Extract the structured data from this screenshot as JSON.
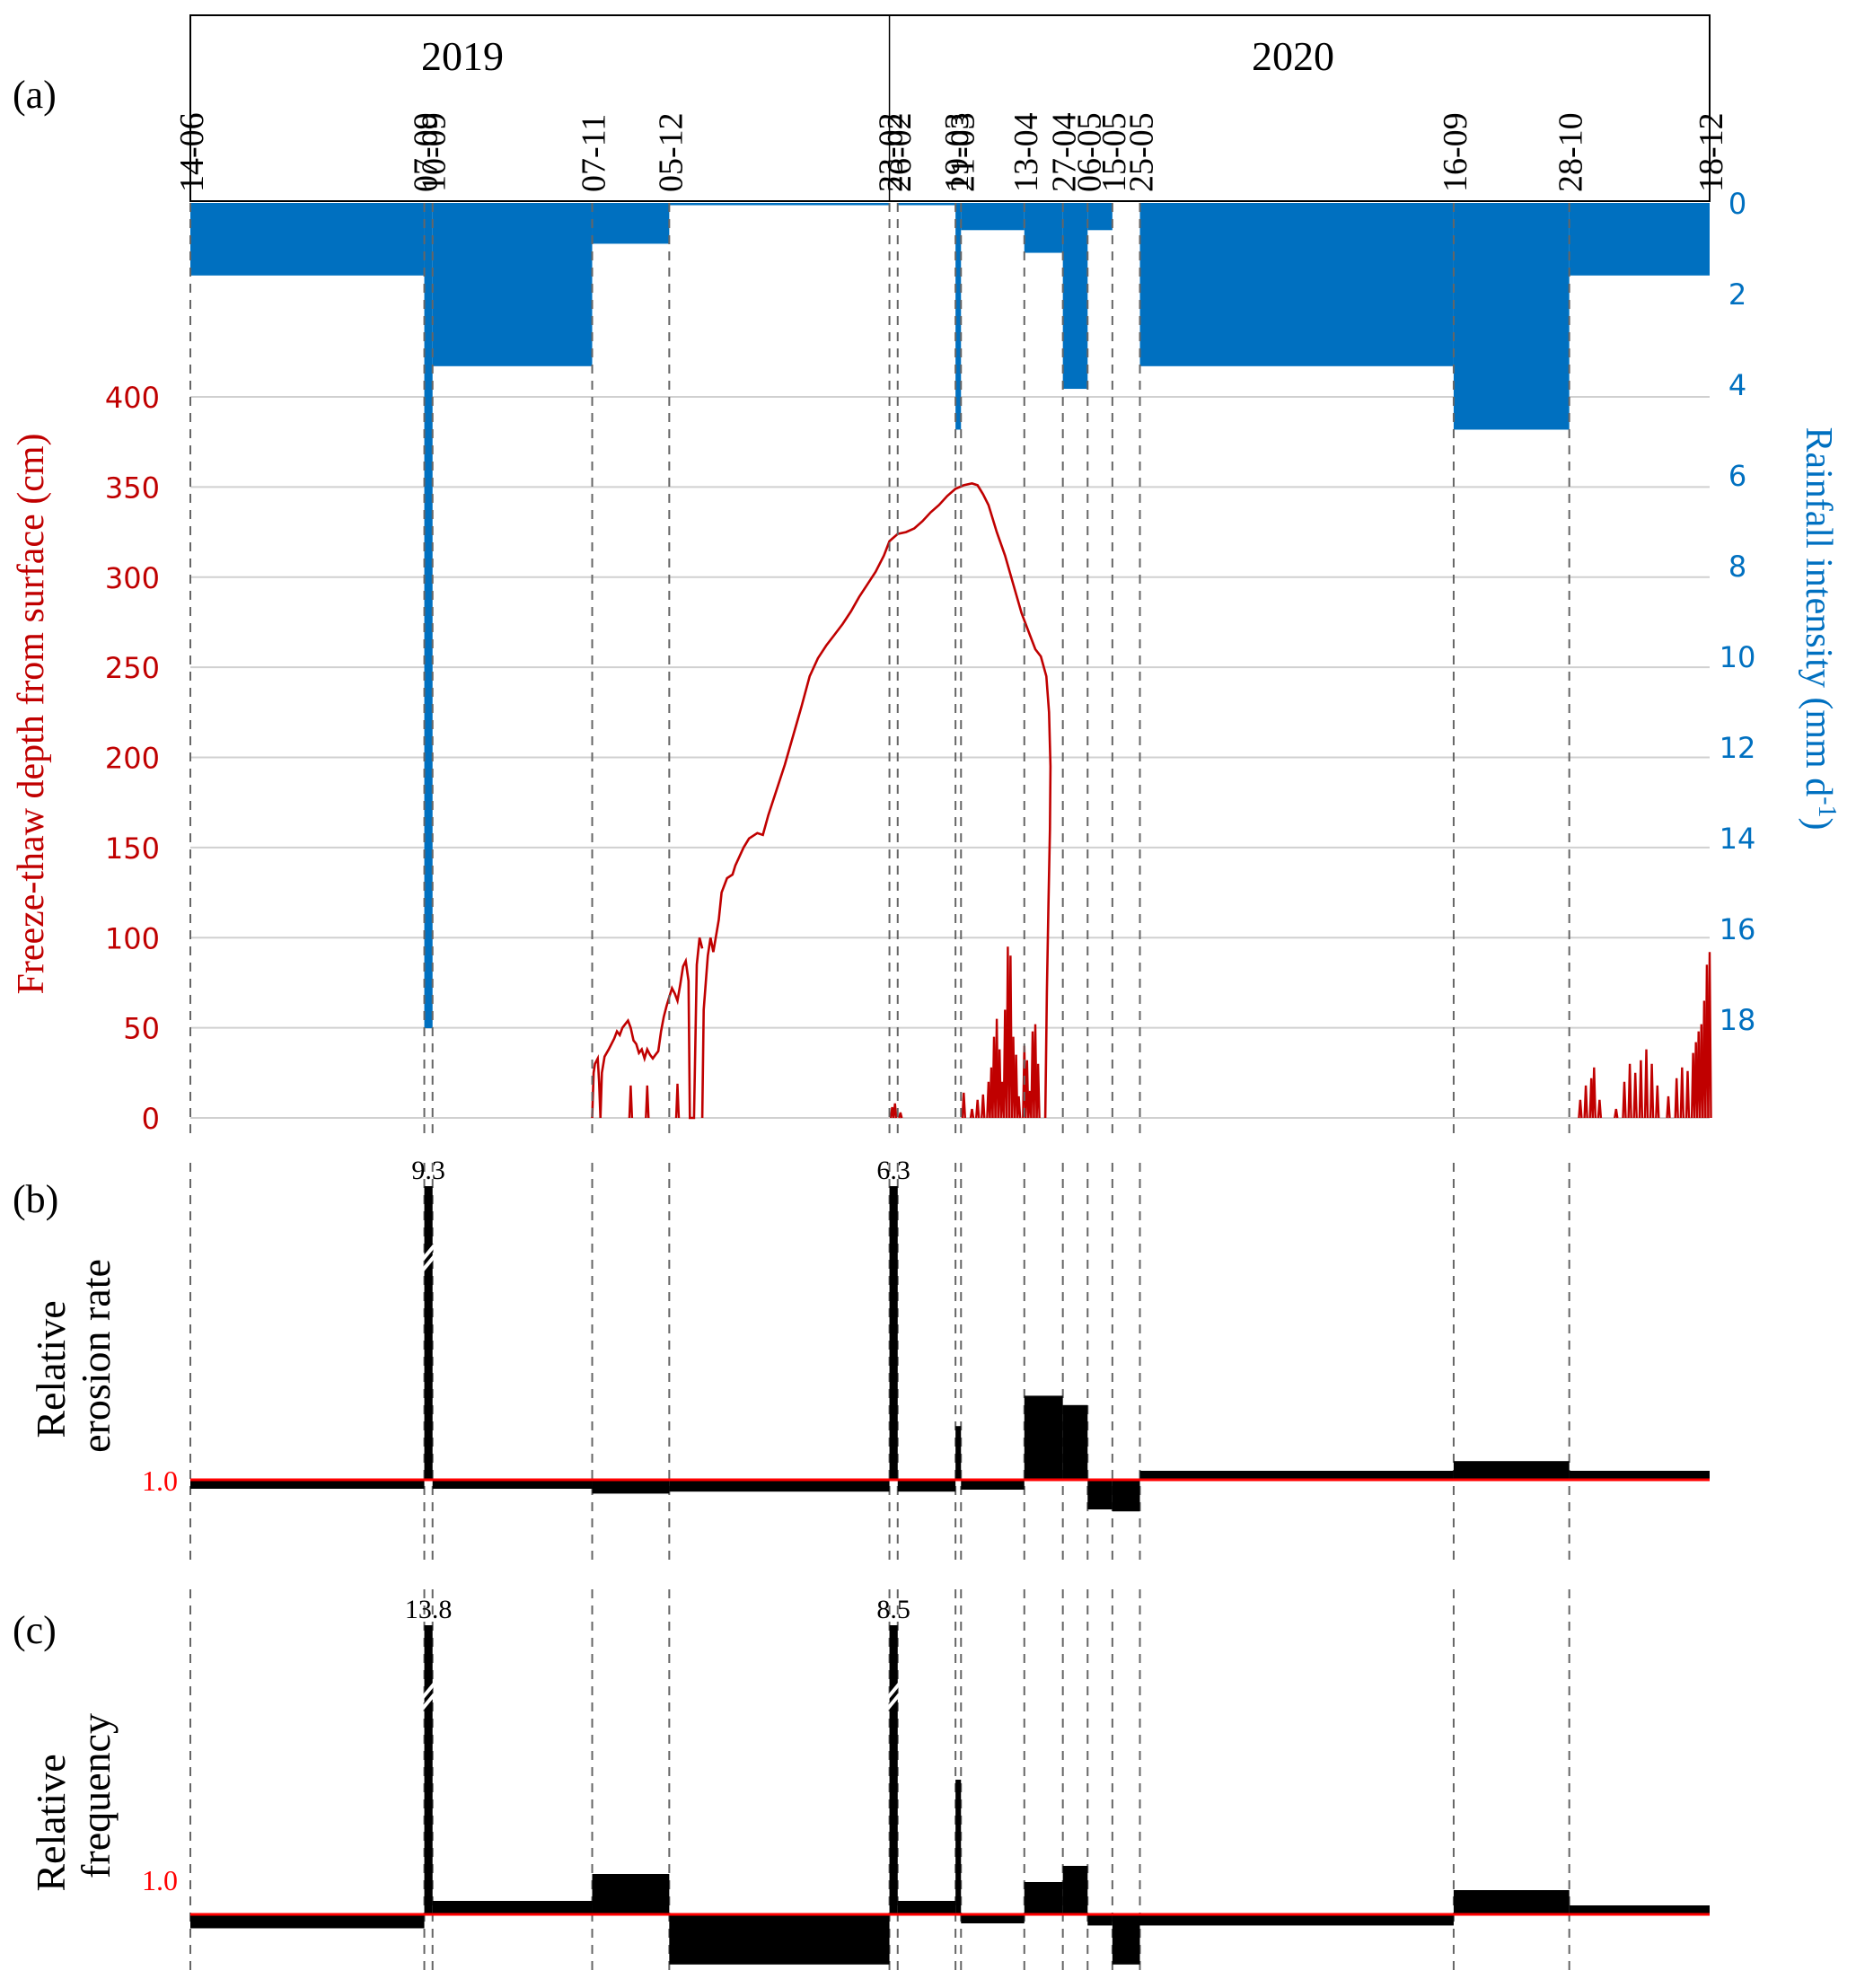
{
  "figure": {
    "panel_labels": [
      "(a)",
      "(b)",
      "(c)"
    ],
    "years": [
      {
        "label": "2019",
        "from": 0,
        "to": 5
      },
      {
        "label": "2020",
        "from": 5,
        "to": 19
      }
    ]
  },
  "chart_data": [
    {
      "id": "a",
      "type": "bar+line",
      "title": "",
      "x_boundaries": [
        "14-06",
        "07-09",
        "10-09",
        "07-11",
        "05-12",
        "23-02",
        "26-02",
        "19-03",
        "21-03",
        "13-04",
        "27-04",
        "06-05",
        "15-05",
        "25-05",
        "16-09",
        "28-10",
        "18-12"
      ],
      "x_boundary_days": [
        0,
        85,
        88,
        146,
        174,
        254,
        257,
        278,
        280,
        303,
        317,
        326,
        335,
        345,
        459,
        501,
        552
      ],
      "rainfall": {
        "ylabel": "Rainfall intensity (mm d-1)",
        "ylabel_main": "Rainfall intensity (mm d",
        "ylabel_sup": "-1",
        "ylabel_close": ")",
        "axis_side": "right",
        "inverted": true,
        "ylim": [
          0,
          20
        ],
        "ticks": [
          0,
          2,
          4,
          6,
          8,
          10,
          12,
          14,
          16,
          18
        ],
        "color": "#0070C0",
        "periods": [
          {
            "start": "14-06",
            "end": "07-09",
            "value": 1.6
          },
          {
            "start": "07-09",
            "end": "10-09",
            "value": 18.2
          },
          {
            "start": "10-09",
            "end": "07-11",
            "value": 3.6
          },
          {
            "start": "07-11",
            "end": "05-12",
            "value": 0.9
          },
          {
            "start": "05-12",
            "end": "23-02",
            "value": 0.05
          },
          {
            "start": "23-02",
            "end": "26-02",
            "value": 0
          },
          {
            "start": "26-02",
            "end": "19-03",
            "value": 0.05
          },
          {
            "start": "19-03",
            "end": "21-03",
            "value": 5.0
          },
          {
            "start": "21-03",
            "end": "13-04",
            "value": 0.6
          },
          {
            "start": "13-04",
            "end": "27-04",
            "value": 1.1
          },
          {
            "start": "27-04",
            "end": "06-05",
            "value": 4.1
          },
          {
            "start": "06-05",
            "end": "15-05",
            "value": 0.6
          },
          {
            "start": "15-05",
            "end": "25-05",
            "value": 0
          },
          {
            "start": "25-05",
            "end": "16-09",
            "value": 3.6
          },
          {
            "start": "16-09",
            "end": "28-10",
            "value": 5.0
          },
          {
            "start": "28-10",
            "end": "18-12",
            "value": 1.6
          }
        ]
      },
      "freeze_thaw": {
        "ylabel": "Freeze-thaw depth from surface (cm)",
        "axis_side": "left",
        "ylim": [
          0,
          400
        ],
        "ticks": [
          0,
          50,
          100,
          150,
          200,
          250,
          300,
          350,
          400
        ],
        "color": "#C00000",
        "grid": true,
        "main_curve": [
          [
            186,
            0
          ],
          [
            186.5,
            60
          ],
          [
            188,
            90
          ],
          [
            189,
            100
          ],
          [
            190,
            92
          ],
          [
            192,
            110
          ],
          [
            193,
            125
          ],
          [
            195,
            133
          ],
          [
            197,
            135
          ],
          [
            198,
            140
          ],
          [
            201,
            150
          ],
          [
            203,
            155
          ],
          [
            206,
            158
          ],
          [
            208,
            157
          ],
          [
            210,
            168
          ],
          [
            213,
            182
          ],
          [
            216,
            196
          ],
          [
            219,
            212
          ],
          [
            222,
            228
          ],
          [
            225,
            245
          ],
          [
            228,
            255
          ],
          [
            231,
            262
          ],
          [
            234,
            268
          ],
          [
            237,
            274
          ],
          [
            240,
            281
          ],
          [
            243,
            289
          ],
          [
            246,
            296
          ],
          [
            249,
            303
          ],
          [
            252,
            312
          ],
          [
            254,
            320
          ],
          [
            257,
            324
          ],
          [
            260,
            325
          ],
          [
            263,
            327
          ],
          [
            266,
            331
          ],
          [
            269,
            336
          ],
          [
            272,
            340
          ],
          [
            275,
            345
          ],
          [
            278,
            349
          ],
          [
            281,
            351
          ],
          [
            284,
            352
          ],
          [
            286,
            351
          ],
          [
            288,
            346
          ],
          [
            290,
            340
          ],
          [
            293,
            325
          ],
          [
            296,
            312
          ],
          [
            299,
            296
          ],
          [
            302,
            280
          ],
          [
            305,
            268
          ],
          [
            307,
            260
          ],
          [
            309,
            256
          ],
          [
            311,
            245
          ],
          [
            312,
            225
          ],
          [
            312.5,
            195
          ],
          [
            312.3,
            160
          ],
          [
            311.8,
            120
          ],
          [
            311.2,
            70
          ],
          [
            310.6,
            0
          ]
        ],
        "episodes_2019": [
          [
            146,
            0
          ],
          [
            146.5,
            25
          ],
          [
            147,
            30
          ],
          [
            148,
            33
          ],
          [
            148.5,
            20
          ],
          [
            149,
            0
          ],
          [
            149.5,
            25
          ],
          [
            150.5,
            34
          ],
          [
            152,
            38
          ],
          [
            154,
            44
          ],
          [
            155,
            48
          ],
          [
            156,
            46
          ],
          [
            157,
            50
          ],
          [
            158,
            52
          ],
          [
            159,
            54
          ],
          [
            160,
            50
          ],
          [
            161,
            43
          ],
          [
            162,
            41
          ],
          [
            163,
            36
          ],
          [
            164,
            38
          ],
          [
            165,
            33
          ],
          [
            166,
            38
          ],
          [
            167,
            35
          ],
          [
            168,
            33
          ],
          [
            169,
            35
          ],
          [
            170,
            37
          ],
          [
            171,
            48
          ],
          [
            172,
            56
          ],
          [
            173,
            62
          ],
          [
            174,
            67
          ],
          [
            175,
            72
          ],
          [
            176,
            69
          ],
          [
            177,
            65
          ],
          [
            178,
            74
          ],
          [
            179,
            84
          ],
          [
            180,
            87
          ],
          [
            181,
            76
          ],
          [
            181.5,
            0
          ],
          [
            183,
            0
          ],
          [
            184,
            85
          ],
          [
            185,
            100
          ],
          [
            186,
            94
          ]
        ],
        "spikes": [
          [
            160,
            18
          ],
          [
            166,
            18
          ],
          [
            177,
            19
          ],
          [
            255,
            6
          ],
          [
            256,
            8
          ],
          [
            258,
            3
          ],
          [
            281,
            14
          ],
          [
            284,
            5
          ],
          [
            286,
            10
          ],
          [
            288,
            13
          ],
          [
            290,
            20
          ],
          [
            291,
            28
          ],
          [
            292,
            45
          ],
          [
            293,
            55
          ],
          [
            294,
            38
          ],
          [
            295,
            20
          ],
          [
            296,
            60
          ],
          [
            297,
            95
          ],
          [
            298,
            90
          ],
          [
            299,
            45
          ],
          [
            300,
            35
          ],
          [
            301,
            12
          ],
          [
            303,
            40
          ],
          [
            304,
            32
          ],
          [
            305,
            15
          ],
          [
            306,
            48
          ],
          [
            307,
            52
          ],
          [
            308,
            30
          ],
          [
            505,
            10
          ],
          [
            507,
            18
          ],
          [
            509,
            22
          ],
          [
            510,
            28
          ],
          [
            512,
            10
          ],
          [
            518,
            5
          ],
          [
            521,
            20
          ],
          [
            523,
            30
          ],
          [
            525,
            25
          ],
          [
            527,
            32
          ],
          [
            529,
            38
          ],
          [
            531,
            30
          ],
          [
            533,
            18
          ],
          [
            537,
            12
          ],
          [
            540,
            22
          ],
          [
            542,
            28
          ],
          [
            544,
            26
          ],
          [
            546,
            36
          ],
          [
            547,
            42
          ],
          [
            548,
            48
          ],
          [
            549,
            52
          ],
          [
            550,
            65
          ],
          [
            551,
            85
          ],
          [
            552,
            92
          ]
        ]
      }
    },
    {
      "id": "b",
      "type": "bar",
      "title": "",
      "ylabel": "Relative erosion rate",
      "ylabel_lines": [
        "Relative",
        "erosion rate"
      ],
      "baseline": 1.0,
      "baseline_label": "1.0",
      "baseline_color": "#FF0000",
      "axis_break_on": [
        "07-09"
      ],
      "values": [
        {
          "start": "14-06",
          "end": "07-09",
          "value": 0.97
        },
        {
          "start": "07-09",
          "end": "10-09",
          "value": 9.3,
          "label": "9.3",
          "broken": true
        },
        {
          "start": "10-09",
          "end": "07-11",
          "value": 0.97
        },
        {
          "start": "07-11",
          "end": "05-12",
          "value": 0.93
        },
        {
          "start": "05-12",
          "end": "23-02",
          "value": 0.94
        },
        {
          "start": "23-02",
          "end": "26-02",
          "value": 6.3,
          "label": "6.3"
        },
        {
          "start": "26-02",
          "end": "19-03",
          "value": 0.94
        },
        {
          "start": "19-03",
          "end": "21-03",
          "value": 1.23
        },
        {
          "start": "21-03",
          "end": "13-04",
          "value": 0.95
        },
        {
          "start": "13-04",
          "end": "27-04",
          "value": 1.36
        },
        {
          "start": "27-04",
          "end": "06-05",
          "value": 1.32
        },
        {
          "start": "06-05",
          "end": "15-05",
          "value": 0.85
        },
        {
          "start": "15-05",
          "end": "25-05",
          "value": 0.84
        },
        {
          "start": "25-05",
          "end": "16-09",
          "value": 1.03
        },
        {
          "start": "16-09",
          "end": "28-10",
          "value": 1.08
        },
        {
          "start": "28-10",
          "end": "18-12",
          "value": 1.01
        }
      ]
    },
    {
      "id": "c",
      "type": "bar",
      "title": "",
      "ylabel": "Relative frequency",
      "ylabel_lines": [
        "Relative",
        "frequency"
      ],
      "baseline": 1.0,
      "baseline_label": "1.0",
      "baseline_color": "#FF0000",
      "axis_break_on": [
        "07-09",
        "23-02"
      ],
      "values": [
        {
          "start": "14-06",
          "end": "07-09",
          "value": 0.95
        },
        {
          "start": "07-09",
          "end": "10-09",
          "value": 13.8,
          "label": "13.8",
          "broken": true
        },
        {
          "start": "10-09",
          "end": "07-11",
          "value": 1.05
        },
        {
          "start": "07-11",
          "end": "05-12",
          "value": 1.15
        },
        {
          "start": "05-12",
          "end": "23-02",
          "value": 0.82
        },
        {
          "start": "23-02",
          "end": "26-02",
          "value": 8.5,
          "label": "8.5",
          "broken": true
        },
        {
          "start": "26-02",
          "end": "19-03",
          "value": 1.05
        },
        {
          "start": "19-03",
          "end": "21-03",
          "value": 1.5
        },
        {
          "start": "21-03",
          "end": "13-04",
          "value": 0.99
        },
        {
          "start": "13-04",
          "end": "27-04",
          "value": 1.12
        },
        {
          "start": "27-04",
          "end": "06-05",
          "value": 1.18
        },
        {
          "start": "06-05",
          "end": "15-05",
          "value": 0.96
        },
        {
          "start": "15-05",
          "end": "25-05",
          "value": 0.82
        },
        {
          "start": "25-05",
          "end": "16-09",
          "value": 0.96
        },
        {
          "start": "16-09",
          "end": "28-10",
          "value": 1.09
        },
        {
          "start": "28-10",
          "end": "18-12",
          "value": 1.0
        }
      ]
    }
  ]
}
